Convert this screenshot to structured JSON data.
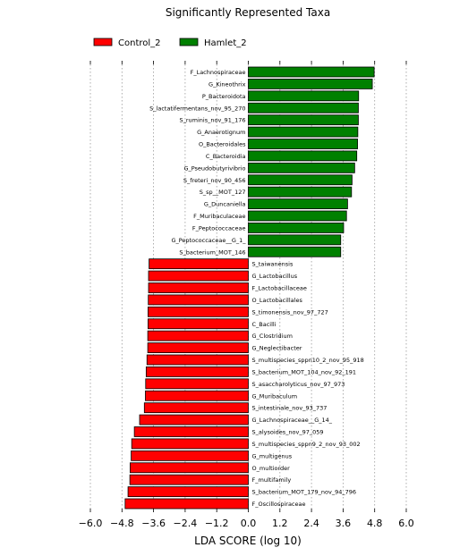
{
  "chart_data": {
    "type": "bar",
    "orientation": "horizontal",
    "title": "Significantly Represented Taxa",
    "xlabel": "LDA SCORE (log 10)",
    "xlim": [
      -6.0,
      6.0
    ],
    "xticks": [
      "−6.0",
      "−4.8",
      "−3.6",
      "−2.4",
      "−1.2",
      "0.0",
      "1.2",
      "2.4",
      "3.6",
      "4.8",
      "6.0"
    ],
    "xtick_values": [
      -6.0,
      -4.8,
      -3.6,
      -2.4,
      -1.2,
      0.0,
      1.2,
      2.4,
      3.6,
      4.8,
      6.0
    ],
    "grid": "vertical dotted",
    "legend_position": "top",
    "series": [
      {
        "name": "Control_2",
        "color": "#ff0000"
      },
      {
        "name": "Hamlet_2",
        "color": "#008000"
      }
    ],
    "bars": [
      {
        "label": "F_Lachnospiraceae",
        "value": 4.78,
        "group": "Hamlet_2"
      },
      {
        "label": "G_Kineothrix",
        "value": 4.71,
        "group": "Hamlet_2"
      },
      {
        "label": "P_Bacteroidota",
        "value": 4.19,
        "group": "Hamlet_2"
      },
      {
        "label": "S_lactatifermentans_nov_95_270",
        "value": 4.18,
        "group": "Hamlet_2"
      },
      {
        "label": "S_ruminis_nov_91_176",
        "value": 4.18,
        "group": "Hamlet_2"
      },
      {
        "label": "G_Anaerotignum",
        "value": 4.16,
        "group": "Hamlet_2"
      },
      {
        "label": "O_Bacteroidales",
        "value": 4.15,
        "group": "Hamlet_2"
      },
      {
        "label": "C_Bacteroidia",
        "value": 4.12,
        "group": "Hamlet_2"
      },
      {
        "label": "G_Pseudobutyrivibrio",
        "value": 4.04,
        "group": "Hamlet_2"
      },
      {
        "label": "S_freteri_nov_90_456",
        "value": 3.94,
        "group": "Hamlet_2"
      },
      {
        "label": "S_sp__MOT_127",
        "value": 3.92,
        "group": "Hamlet_2"
      },
      {
        "label": "G_Duncaniella",
        "value": 3.77,
        "group": "Hamlet_2"
      },
      {
        "label": "F_Muribaculaceae",
        "value": 3.73,
        "group": "Hamlet_2"
      },
      {
        "label": "F_Peptococcaceae",
        "value": 3.62,
        "group": "Hamlet_2"
      },
      {
        "label": "G_Peptococcaceae__G_1_",
        "value": 3.51,
        "group": "Hamlet_2"
      },
      {
        "label": "S_bacterium_MOT_146",
        "value": 3.51,
        "group": "Hamlet_2"
      },
      {
        "label": "S_taiwanensis",
        "value": -3.77,
        "group": "Control_2"
      },
      {
        "label": "G_Lactobacillus",
        "value": -3.79,
        "group": "Control_2"
      },
      {
        "label": "F_Lactobacillaceae",
        "value": -3.79,
        "group": "Control_2"
      },
      {
        "label": "O_Lactobacillales",
        "value": -3.8,
        "group": "Control_2"
      },
      {
        "label": "S_timonensis_nov_97_727",
        "value": -3.81,
        "group": "Control_2"
      },
      {
        "label": "C_Bacilli",
        "value": -3.81,
        "group": "Control_2"
      },
      {
        "label": "G_Clostridium",
        "value": -3.82,
        "group": "Control_2"
      },
      {
        "label": "G_Neglectibacter",
        "value": -3.82,
        "group": "Control_2"
      },
      {
        "label": "S_multispecies_sppn10_2_nov_95_918",
        "value": -3.85,
        "group": "Control_2"
      },
      {
        "label": "S_bacterium_MOT_104_nov_92_191",
        "value": -3.88,
        "group": "Control_2"
      },
      {
        "label": "S_asaccharolyticus_nov_97_973",
        "value": -3.9,
        "group": "Control_2"
      },
      {
        "label": "G_Muribaculum",
        "value": -3.91,
        "group": "Control_2"
      },
      {
        "label": "S_intestinale_nov_93_737",
        "value": -3.95,
        "group": "Control_2"
      },
      {
        "label": "G_Lachnospiraceae__G_14_",
        "value": -4.13,
        "group": "Control_2"
      },
      {
        "label": "S_alysoides_nov_97_059",
        "value": -4.33,
        "group": "Control_2"
      },
      {
        "label": "S_multispecies_sppn9_2_nov_93_002",
        "value": -4.43,
        "group": "Control_2"
      },
      {
        "label": "G_multigenus",
        "value": -4.45,
        "group": "Control_2"
      },
      {
        "label": "O_multiorder",
        "value": -4.49,
        "group": "Control_2"
      },
      {
        "label": "F_multifamily",
        "value": -4.5,
        "group": "Control_2"
      },
      {
        "label": "S_bacterium_MOT_179_nov_94_796",
        "value": -4.57,
        "group": "Control_2"
      },
      {
        "label": "F_Oscillospiraceae",
        "value": -4.68,
        "group": "Control_2"
      }
    ]
  }
}
